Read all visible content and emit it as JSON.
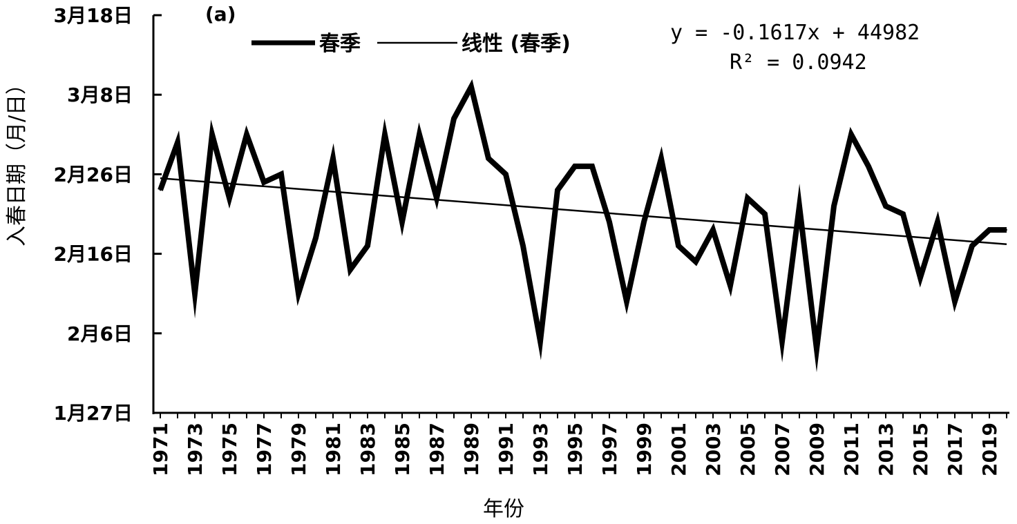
{
  "chart_data": {
    "type": "line",
    "panel_label": "(a)",
    "ylabel": "入春日期（月/日）",
    "xlabel": "年份",
    "y_unit": "day of year",
    "ylim": [
      27,
      77
    ],
    "y_ticks": [
      {
        "value": 27,
        "label": "1月27日"
      },
      {
        "value": 37,
        "label": "2月6日"
      },
      {
        "value": 47,
        "label": "2月16日"
      },
      {
        "value": 57,
        "label": "2月26日"
      },
      {
        "value": 67,
        "label": "3月8日"
      },
      {
        "value": 77,
        "label": "3月18日"
      }
    ],
    "x": [
      1971,
      1972,
      1973,
      1974,
      1975,
      1976,
      1977,
      1978,
      1979,
      1980,
      1981,
      1982,
      1983,
      1984,
      1985,
      1986,
      1987,
      1988,
      1989,
      1990,
      1991,
      1992,
      1993,
      1994,
      1995,
      1996,
      1997,
      1998,
      1999,
      2000,
      2001,
      2002,
      2003,
      2004,
      2005,
      2006,
      2007,
      2008,
      2009,
      2010,
      2011,
      2012,
      2013,
      2014,
      2015,
      2016,
      2017,
      2018,
      2019,
      2020
    ],
    "x_tick_labels": [
      "1971",
      "1973",
      "1975",
      "1977",
      "1979",
      "1981",
      "1983",
      "1985",
      "1987",
      "1989",
      "1991",
      "1993",
      "1995",
      "1997",
      "1999",
      "2001",
      "2003",
      "2005",
      "2007",
      "2009",
      "2011",
      "2013",
      "2015",
      "2017",
      "2019"
    ],
    "series": [
      {
        "name": "春季",
        "values": [
          55,
          61,
          42,
          62,
          54,
          62,
          56,
          57,
          42,
          49,
          59,
          45,
          48,
          62,
          51,
          62,
          54,
          64,
          68,
          59,
          57,
          48,
          36,
          55,
          58,
          58,
          51,
          41,
          51,
          59,
          48,
          46,
          50,
          43,
          54,
          52,
          36,
          53,
          35,
          53,
          62,
          58,
          53,
          52,
          44,
          51,
          41,
          48,
          50,
          50
        ]
      },
      {
        "name": "线性 (春季)",
        "regression": {
          "slope_per_year": -0.1617,
          "intercept": 44982
        },
        "start": {
          "x": 1971,
          "y": 56.5
        },
        "end": {
          "x": 2020,
          "y": 48.2
        }
      }
    ],
    "legend": [
      {
        "label": "春季"
      },
      {
        "label": "线性 (春季)"
      }
    ],
    "legend_position": "top-center",
    "equation_lines": [
      "y = -0.1617x + 44982",
      "R² = 0.0942"
    ],
    "grid": false
  }
}
